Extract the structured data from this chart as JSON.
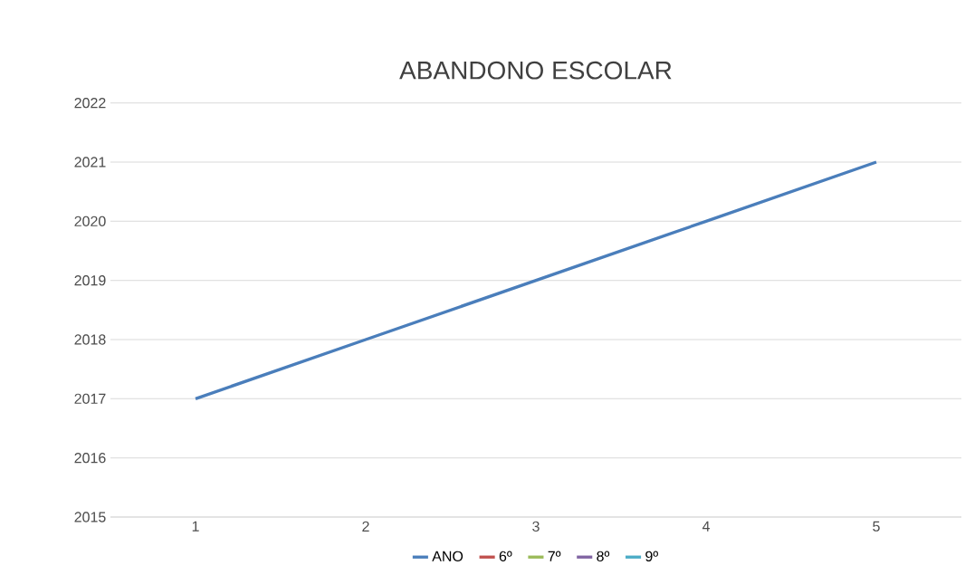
{
  "chart_data": {
    "type": "line",
    "title": "ABANDONO ESCOLAR",
    "categories": [
      "1",
      "2",
      "3",
      "4",
      "5"
    ],
    "series": [
      {
        "name": "ANO",
        "color": "#4a7ebb",
        "values": [
          2017,
          2018,
          2019,
          2020,
          2021
        ]
      },
      {
        "name": "6º",
        "color": "#c0504d",
        "values": [
          null,
          null,
          null,
          null,
          null
        ]
      },
      {
        "name": "7º",
        "color": "#9bbb59",
        "values": [
          null,
          null,
          null,
          null,
          null
        ]
      },
      {
        "name": "8º",
        "color": "#8064a2",
        "values": [
          null,
          null,
          null,
          null,
          null
        ]
      },
      {
        "name": "9º",
        "color": "#4bacc6",
        "values": [
          null,
          null,
          null,
          null,
          null
        ]
      }
    ],
    "ylim": [
      2015,
      2022
    ],
    "yticks": [
      2015,
      2016,
      2017,
      2018,
      2019,
      2020,
      2021,
      2022
    ],
    "grid": "y",
    "legend": "bottom"
  }
}
